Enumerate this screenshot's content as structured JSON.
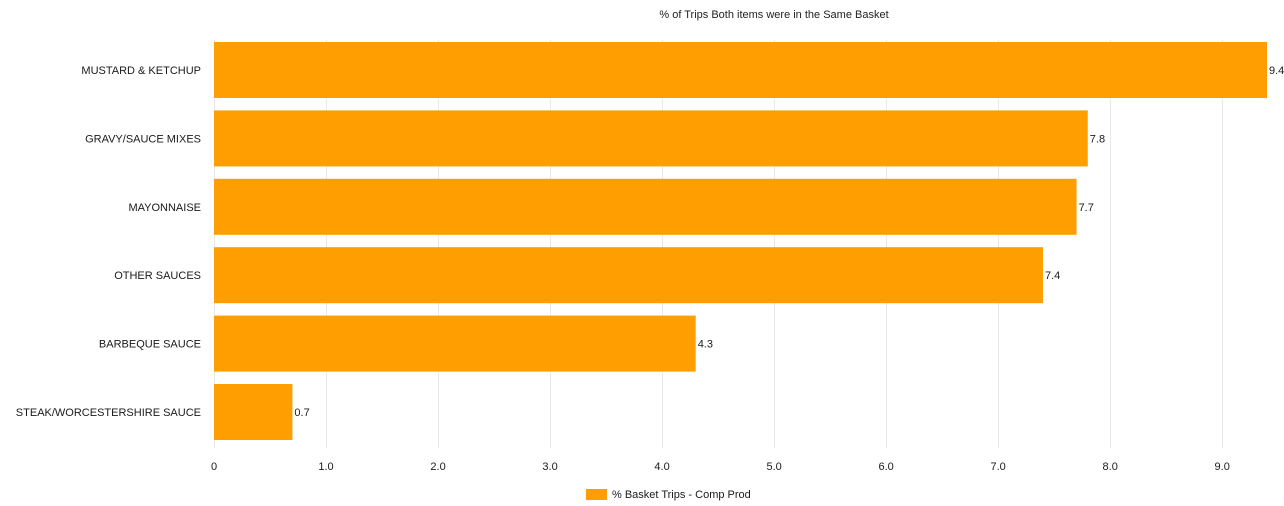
{
  "chart_data": {
    "type": "bar",
    "orientation": "horizontal",
    "title": "% of Trips Both items were in the Same Basket",
    "categories": [
      "MUSTARD & KETCHUP",
      "GRAVY/SAUCE MIXES",
      "MAYONNAISE",
      "OTHER SAUCES",
      "BARBEQUE SAUCE",
      "STEAK/WORCESTERSHIRE SAUCE"
    ],
    "series": [
      {
        "name": "% Basket Trips - Comp Prod",
        "values": [
          9.4,
          7.8,
          7.7,
          7.4,
          4.3,
          0.7
        ],
        "data_labels": [
          "9.4",
          "7.8",
          "7.7",
          "7.4",
          "4.3",
          "0.7"
        ],
        "color": "#ff9e00"
      }
    ],
    "xlim": [
      0,
      9.4
    ],
    "x_ticks": [
      0,
      1,
      2,
      3,
      4,
      5,
      6,
      7,
      8,
      9
    ],
    "x_tick_labels": [
      "0",
      "1.0",
      "2.0",
      "3.0",
      "4.0",
      "5.0",
      "6.0",
      "7.0",
      "8.0",
      "9.0"
    ],
    "xlabel": "",
    "ylabel": "",
    "grid": "vertical",
    "legend_position": "bottom-center"
  }
}
